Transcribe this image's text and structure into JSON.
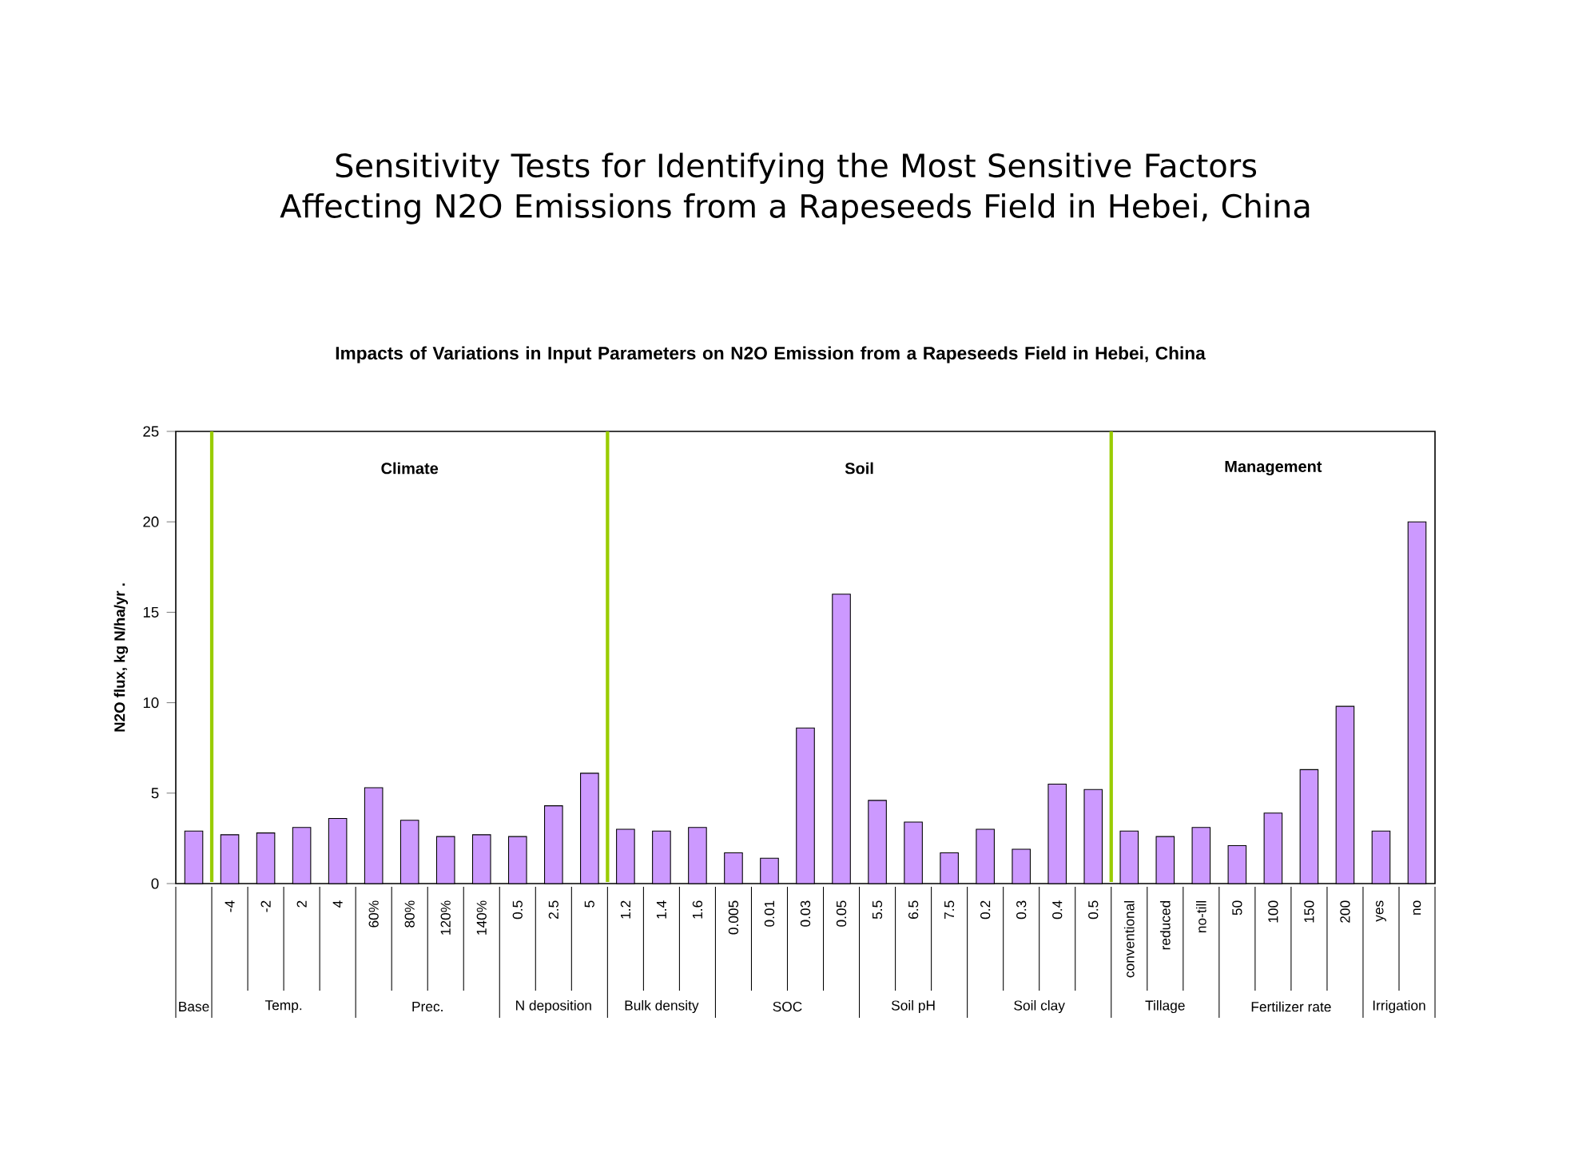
{
  "chart_data": {
    "type": "bar",
    "title": "Sensitivity Tests for Identifying the Most Sensitive Factors Affecting N2O Emissions from a Rapeseeds Field in Hebei, China",
    "subtitle": "Impacts of Variations in Input Parameters on N2O Emission from a Rapeseeds Field in Hebei, China",
    "ylabel": "N2O flux, kg N/ha/yr .",
    "categories": [
      null,
      "-4",
      "-2",
      "2",
      "4",
      "60%",
      "80%",
      "120%",
      "140%",
      "0.5",
      "2.5",
      "5",
      "1.2",
      "1.4",
      "1.6",
      "0.005",
      "0.01",
      "0.03",
      "0.05",
      "5.5",
      "6.5",
      "7.5",
      "0.2",
      "0.3",
      "0.4",
      "0.5",
      "conventional",
      "reduced",
      "no-till",
      "50",
      "100",
      "150",
      "200",
      "yes",
      "no"
    ],
    "values": [
      2.9,
      2.7,
      2.8,
      3.1,
      3.6,
      5.3,
      3.5,
      2.6,
      2.7,
      2.6,
      4.3,
      6.1,
      3.0,
      2.9,
      3.1,
      1.7,
      1.4,
      8.6,
      16.0,
      4.6,
      3.4,
      1.7,
      3.0,
      1.9,
      5.5,
      5.2,
      2.9,
      2.6,
      3.1,
      2.1,
      3.9,
      6.3,
      9.8,
      2.9,
      20.0
    ],
    "color": "#cc99ff",
    "ylim": [
      0,
      25
    ],
    "yticks": [
      0,
      5,
      10,
      15,
      20,
      25
    ],
    "annotations": [
      "Climate",
      "Soil",
      "Management",
      "Base",
      "Temp.",
      "Prec.",
      "N deposition",
      "Bulk density",
      "SOC",
      "Soil pH",
      "Soil clay",
      "Tillage",
      "Fertilizer rate",
      "Irrigation"
    ]
  }
}
